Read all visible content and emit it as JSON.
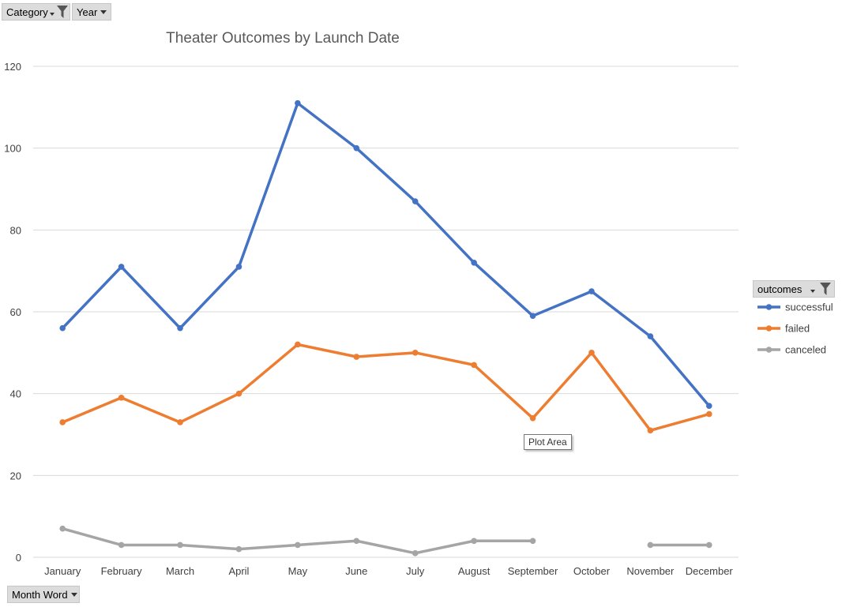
{
  "filters": {
    "category_label": "Category",
    "year_label": "Year",
    "axis_field_label": "Month Word",
    "legend_field_label": "outcomes"
  },
  "tooltip": "Plot Area",
  "colors": {
    "successful": "#4472c4",
    "failed": "#ed7d31",
    "canceled": "#a5a5a5",
    "gridline": "#d9d9d9"
  },
  "chart_data": {
    "type": "line",
    "title": "Theater Outcomes by Launch Date",
    "xlabel": "",
    "ylabel": "",
    "categories": [
      "January",
      "February",
      "March",
      "April",
      "May",
      "June",
      "July",
      "August",
      "September",
      "October",
      "November",
      "December"
    ],
    "ylim": [
      0,
      120
    ],
    "yticks": [
      0,
      20,
      40,
      60,
      80,
      100,
      120
    ],
    "grid": true,
    "legend_position": "right",
    "series": [
      {
        "name": "successful",
        "values": [
          56,
          71,
          56,
          71,
          111,
          100,
          87,
          72,
          59,
          65,
          54,
          37
        ]
      },
      {
        "name": "failed",
        "values": [
          33,
          39,
          33,
          40,
          52,
          49,
          50,
          47,
          34,
          50,
          31,
          35
        ]
      },
      {
        "name": "canceled",
        "values": [
          7,
          3,
          3,
          2,
          3,
          4,
          1,
          4,
          4,
          null,
          3,
          3
        ]
      }
    ]
  }
}
